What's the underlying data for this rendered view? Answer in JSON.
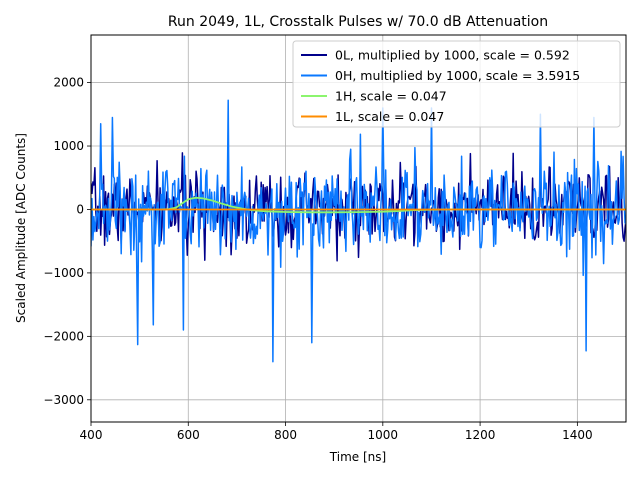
{
  "chart_data": {
    "type": "line",
    "title": "Run 2049, 1L, Crosstalk Pulses w/ 70.0 dB Attenuation",
    "xlabel": "Time [ns]",
    "ylabel": "Scaled Amplitude [ADC Counts]",
    "xlim": [
      400,
      1500
    ],
    "ylim": [
      -3350,
      2750
    ],
    "xticks": [
      400,
      600,
      800,
      1000,
      1200,
      1400
    ],
    "yticks": [
      -3000,
      -2000,
      -1000,
      0,
      1000,
      2000
    ],
    "grid": true,
    "legend_position": "upper right",
    "series": [
      {
        "name": "0L, multiplied by 1000,  scale = 0.592",
        "color": "#00008b",
        "style": "noise",
        "noise_amplitude": 520,
        "seed": 7,
        "points": [
          [
            400,
            0
          ],
          [
            1500,
            0
          ]
        ]
      },
      {
        "name": "0H, multiplied by 1000,  scale = 3.5915",
        "color": "#0a78ff",
        "style": "noise",
        "noise_amplitude": 650,
        "seed": 13,
        "spikes": [
          {
            "x": 420,
            "y": 1350
          },
          {
            "x": 445,
            "y": 1450
          },
          {
            "x": 497,
            "y": -2130
          },
          {
            "x": 529,
            "y": -1820
          },
          {
            "x": 590,
            "y": -1900
          },
          {
            "x": 682,
            "y": 1720
          },
          {
            "x": 775,
            "y": -2400
          },
          {
            "x": 855,
            "y": -2100
          },
          {
            "x": 1000,
            "y": 1600
          },
          {
            "x": 1100,
            "y": 1600
          },
          {
            "x": 1325,
            "y": 1500
          },
          {
            "x": 1418,
            "y": -2230
          },
          {
            "x": 1435,
            "y": 1450
          }
        ],
        "points": [
          [
            400,
            0
          ],
          [
            1500,
            0
          ]
        ]
      },
      {
        "name": "1H,  scale = 0.047",
        "color": "#8cf56e",
        "style": "line",
        "points": [
          [
            400,
            0
          ],
          [
            540,
            0
          ],
          [
            560,
            5
          ],
          [
            575,
            30
          ],
          [
            590,
            110
          ],
          [
            600,
            160
          ],
          [
            615,
            185
          ],
          [
            630,
            175
          ],
          [
            650,
            140
          ],
          [
            670,
            90
          ],
          [
            690,
            45
          ],
          [
            710,
            15
          ],
          [
            730,
            -10
          ],
          [
            760,
            -30
          ],
          [
            800,
            -40
          ],
          [
            850,
            -45
          ],
          [
            900,
            -45
          ],
          [
            950,
            -42
          ],
          [
            1000,
            -35
          ],
          [
            1030,
            -25
          ],
          [
            1060,
            -12
          ],
          [
            1100,
            -3
          ],
          [
            1150,
            0
          ],
          [
            1500,
            0
          ]
        ]
      },
      {
        "name": "1L,  scale = 0.047",
        "color": "#ff8c00",
        "style": "line",
        "points": [
          [
            400,
            0
          ],
          [
            1500,
            0
          ]
        ]
      }
    ]
  }
}
